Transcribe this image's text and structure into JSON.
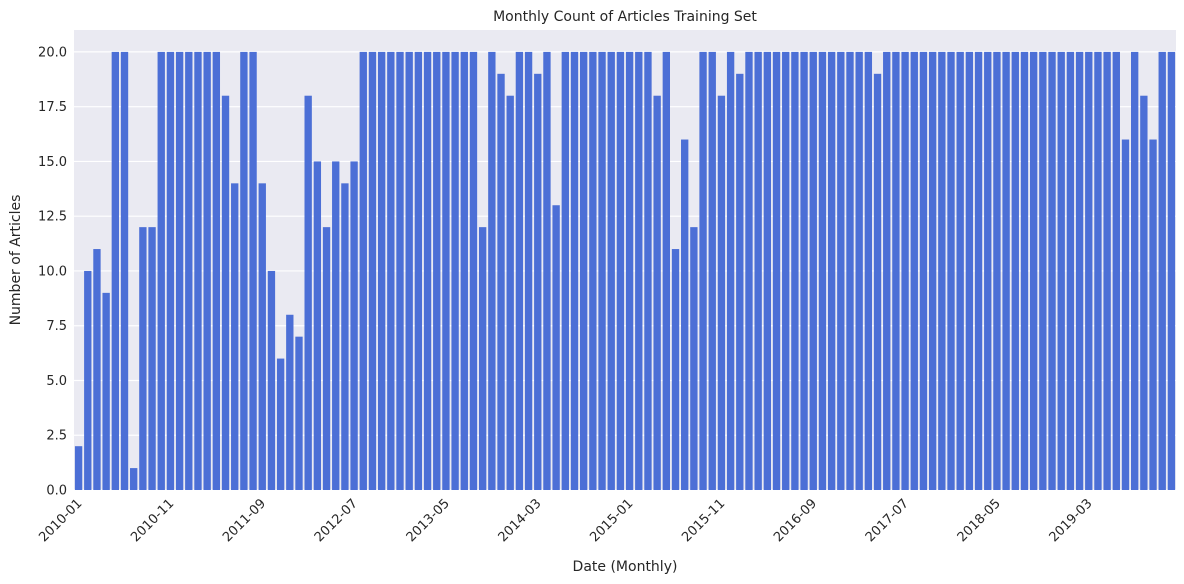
{
  "chart_data": {
    "type": "bar",
    "title": "Monthly Count of Articles Training Set",
    "xlabel": "Date (Monthly)",
    "ylabel": "Number of Articles",
    "color": "#4c6fd6",
    "grid": true,
    "categories": [
      "2010-01",
      null,
      null,
      null,
      null,
      null,
      null,
      null,
      null,
      null,
      "2010-11",
      null,
      null,
      null,
      null,
      null,
      null,
      null,
      null,
      null,
      "2011-09",
      null,
      null,
      null,
      null,
      null,
      null,
      null,
      null,
      null,
      "2012-07",
      null,
      null,
      null,
      null,
      null,
      null,
      null,
      null,
      null,
      "2013-05",
      null,
      null,
      null,
      null,
      null,
      null,
      null,
      null,
      null,
      "2014-03",
      null,
      null,
      null,
      null,
      null,
      null,
      null,
      null,
      null,
      "2015-01",
      null,
      null,
      null,
      null,
      null,
      null,
      null,
      null,
      null,
      "2015-11",
      null,
      null,
      null,
      null,
      null,
      null,
      null,
      null,
      null,
      "2016-09",
      null,
      null,
      null,
      null,
      null,
      null,
      null,
      null,
      null,
      "2017-07",
      null,
      null,
      null,
      null,
      null,
      null,
      null,
      null,
      null,
      "2018-05",
      null,
      null,
      null,
      null,
      null,
      null,
      null,
      null,
      null,
      "2019-03",
      null,
      null,
      null,
      null,
      null,
      null,
      null,
      null,
      null
    ],
    "values": [
      2,
      10,
      11,
      9,
      20,
      20,
      1,
      12,
      12,
      20,
      20,
      20,
      20,
      20,
      20,
      20,
      18,
      14,
      20,
      20,
      14,
      10,
      6,
      8,
      7,
      18,
      15,
      12,
      15,
      14,
      15,
      20,
      20,
      20,
      20,
      20,
      20,
      20,
      20,
      20,
      20,
      20,
      20,
      20,
      12,
      20,
      19,
      18,
      20,
      20,
      19,
      20,
      13,
      20,
      20,
      20,
      20,
      20,
      20,
      20,
      20,
      20,
      20,
      18,
      20,
      11,
      16,
      12,
      20,
      20,
      18,
      20,
      19,
      20,
      20,
      20,
      20,
      20,
      20,
      20,
      20,
      20,
      20,
      20,
      20,
      20,
      20,
      19,
      20,
      20,
      20,
      20,
      20,
      20,
      20,
      20,
      20,
      20,
      20,
      20,
      20,
      20,
      20,
      20,
      20,
      20,
      20,
      20,
      20,
      20,
      20,
      20,
      20,
      20,
      16,
      20,
      18,
      16,
      20,
      20
    ],
    "ylim": [
      0,
      21
    ],
    "yticks": [
      {
        "value": 0,
        "label": "0.0"
      },
      {
        "value": 2.5,
        "label": "2.5"
      },
      {
        "value": 5,
        "label": "5.0"
      },
      {
        "value": 7.5,
        "label": "7.5"
      },
      {
        "value": 10,
        "label": "10.0"
      },
      {
        "value": 12.5,
        "label": "12.5"
      },
      {
        "value": 15,
        "label": "15.0"
      },
      {
        "value": 17.5,
        "label": "17.5"
      },
      {
        "value": 20,
        "label": "20.0"
      }
    ]
  }
}
